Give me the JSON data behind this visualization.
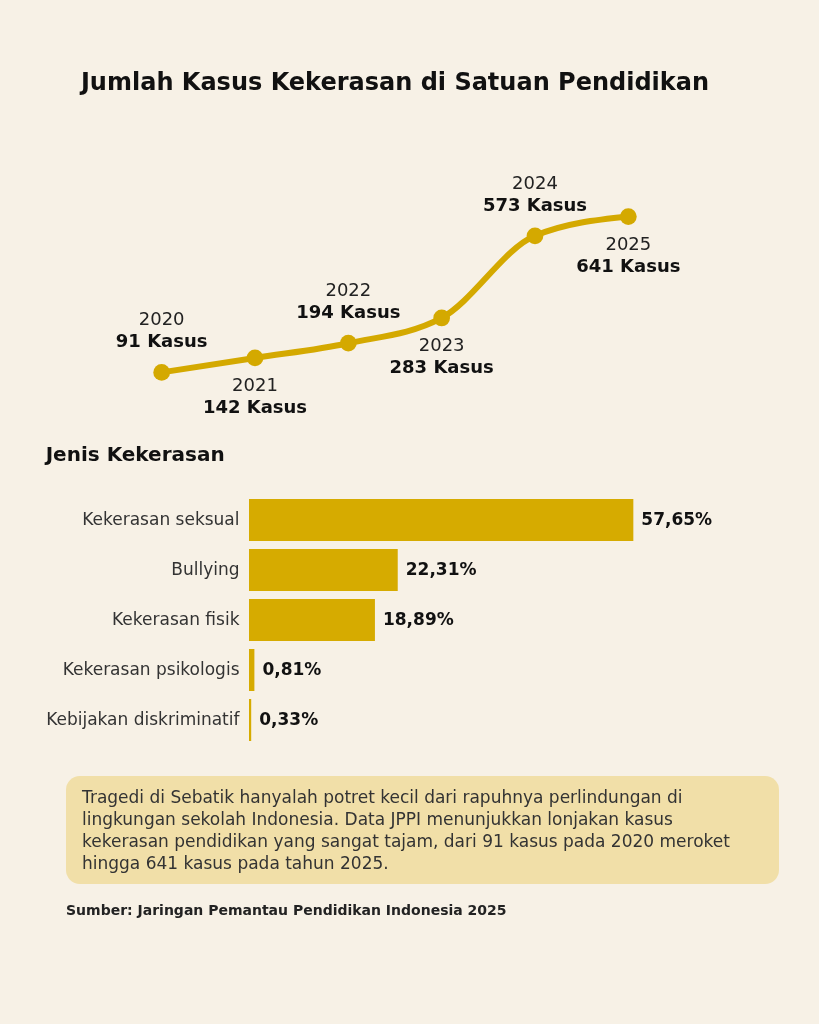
{
  "chart_data": [
    {
      "type": "line",
      "title": "Jumlah Kasus Kekerasan di Satuan Pendidikan",
      "categories": [
        "2020",
        "2021",
        "2022",
        "2023",
        "2024",
        "2025"
      ],
      "series": [
        {
          "color": "#d4a900",
          "values": [
            91,
            142,
            194,
            283,
            573,
            641
          ],
          "value_labels": [
            "91 Kasus",
            "142 Kasus",
            "194 Kasus",
            "283 Kasus",
            "573 Kasus",
            "641 Kasus"
          ]
        }
      ],
      "marker": "circle"
    },
    {
      "type": "bar",
      "orientation": "horizontal",
      "title": "Jenis Kekerasan",
      "categories": [
        "Kekerasan seksual",
        "Bullying",
        "Kekerasan fisik",
        "Kekerasan psikologis",
        "Kebijakan diskriminatif"
      ],
      "values": [
        57.65,
        22.31,
        18.89,
        0.81,
        0.33
      ],
      "color": "#d6ab00",
      "value_labels": [
        "57,65%",
        "22,31%",
        "18,89%",
        "0,81%",
        "0,33%"
      ],
      "annotations": [
        "Tragedi di Sebatik hanyalah potret kecil dari rapuhnya perlindungan di lingkungan sekolah Indonesia. Data JPPI menunjukkan lonjakan kasus kekerasan pendidikan yang sangat tajam, dari 91 kasus pada 2020 meroket hingga 641 kasus pada tahun 2025.",
        "Sumber: Jaringan Pemantau Pendidikan Indonesia 2025"
      ]
    }
  ]
}
